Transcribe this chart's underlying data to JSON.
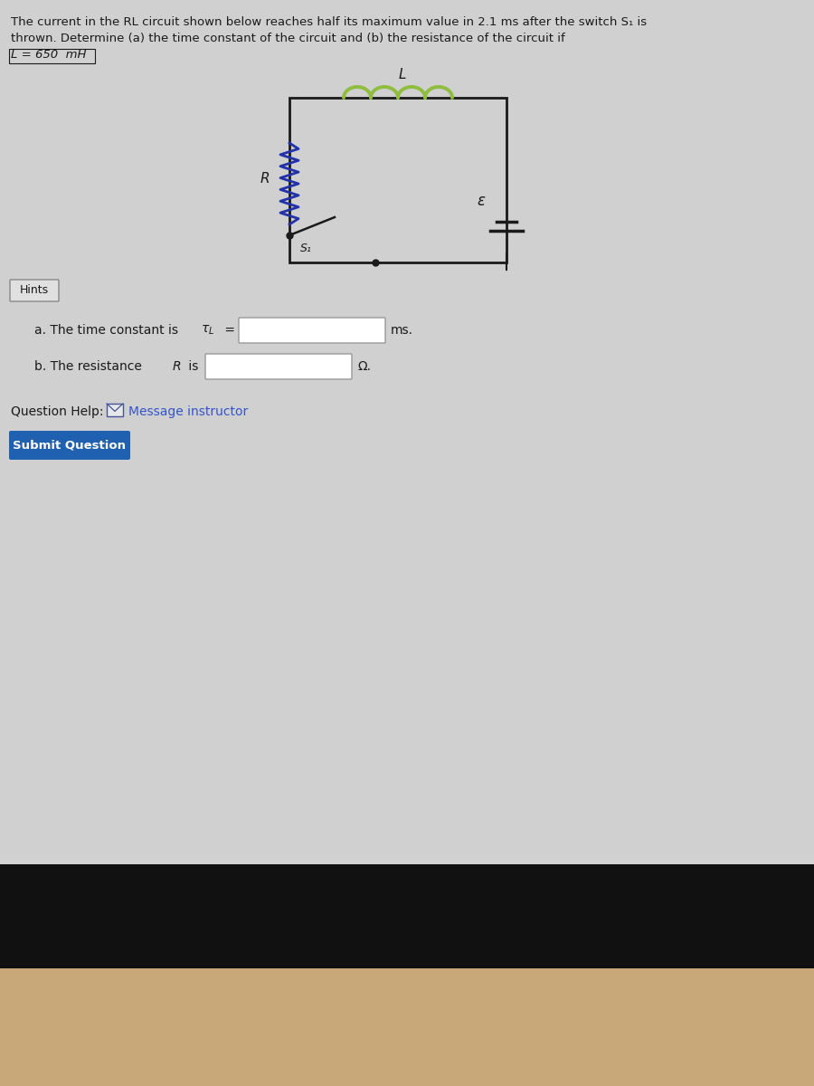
{
  "bg_color_top": "#c8c8c8",
  "bg_color_main": "#d4d4d4",
  "text_color": "#1a1a1a",
  "title_line1": "The current in the RL circuit shown below reaches half its maximum value in 2.1 ms after the switch S₁ is",
  "title_line2": "thrown. Determine (a) the time constant of the circuit and (b) the resistance of the circuit if",
  "title_line3": "L = 650  mH",
  "hints_label": "Hints",
  "part_a_text": "a. The time constant is τ",
  "part_a_sub": "L",
  "part_a_eq": " =",
  "part_a_unit": "ms.",
  "part_b_text1": "b. The resistance ",
  "part_b_italic": "R",
  "part_b_text2": " is",
  "part_b_unit": "Ω.",
  "question_help_prefix": "Question Help:",
  "message_instructor_text": "Message instructor",
  "submit_text": "Submit Question",
  "submit_color": "#2060b0",
  "submit_text_color": "#ffffff",
  "circuit_L_label": "L",
  "circuit_R_label": "R",
  "circuit_S1_label": "S₁",
  "circuit_emf_label": "ε",
  "inductor_color": "#8fbe3f",
  "resistor_color": "#2233aa",
  "wire_color": "#1a1a1a",
  "input_box_color": "#ffffff",
  "input_box_border": "#999999",
  "bottom_bar_color": "#0a0a0a",
  "bottom_bar2_color": "#c8a070"
}
